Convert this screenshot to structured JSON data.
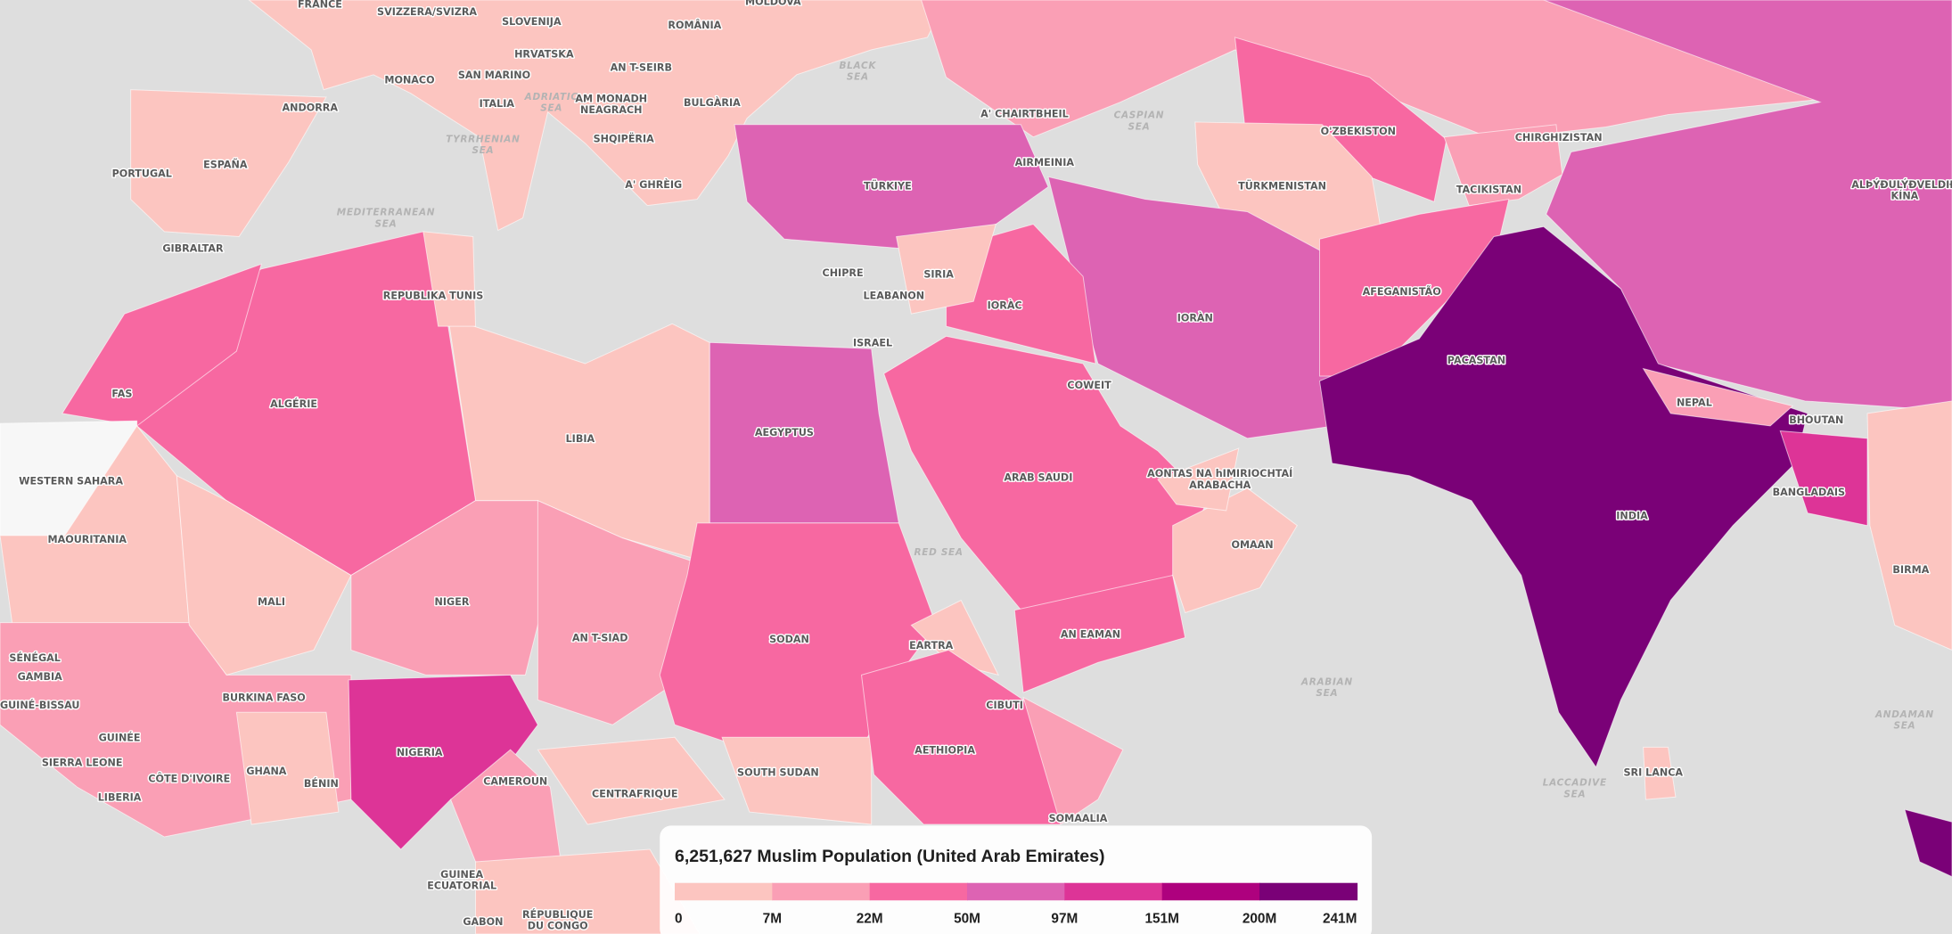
{
  "map": {
    "country_labels": [
      [
        "FRANCE"
      ],
      [
        "SVIZZERA/SVIZRA"
      ],
      [
        "SLOVENIJA"
      ],
      [
        "ROMÂNIA"
      ],
      [
        "MOLDOVA"
      ],
      [
        "HRVATSKA"
      ],
      [
        "AN T-SEIRB"
      ],
      [
        "MONACO"
      ],
      [
        "SAN MARINO"
      ],
      [
        "ANDORRA"
      ],
      [
        "ITALIA"
      ],
      [
        "AM MONADH",
        "NEAGRACH"
      ],
      [
        "BULGÀRIA"
      ],
      [
        "SHQIPËRIA"
      ],
      [
        "PORTUGAL"
      ],
      [
        "ESPAÑA"
      ],
      [
        "A' CHAIRTBHEIL"
      ],
      [
        "O'ZBEKISTON"
      ],
      [
        "CHIRGHIZISTAN"
      ],
      [
        "A' GHRÈIG"
      ],
      [
        "TÜRKIYE"
      ],
      [
        "AIRMEINIA"
      ],
      [
        "TÜRKMENISTAN"
      ],
      [
        "TACIKISTAN"
      ],
      [
        "ALÞÝÐULÝÐVELDIÐ",
        "KÍNA"
      ],
      [
        "GIBRALTAR"
      ],
      [
        "CHIPRE"
      ],
      [
        "SIRIA"
      ],
      [
        "REPUBLIKA TUNIS"
      ],
      [
        "LEABANON"
      ],
      [
        "AFEGANISTÃO"
      ],
      [
        "IORÀC"
      ],
      [
        "IORÀN"
      ],
      [
        "ISRAEL"
      ],
      [
        "PACASTAN"
      ],
      [
        "FAS"
      ],
      [
        "ALGÉRIE"
      ],
      [
        "LIBIA"
      ],
      [
        "AEGYPTUS"
      ],
      [
        "COWEIT"
      ],
      [
        "NEPAL"
      ],
      [
        "BHOUTAN"
      ],
      [
        "WESTERN SAHARA"
      ],
      [
        "ARAB SAUDI"
      ],
      [
        "AONTAS NA hIMIRIOCHTAÍ",
        "ARABACHA"
      ],
      [
        "BANGLADAIS"
      ],
      [
        "INDIA"
      ],
      [
        "MAOURITANIA"
      ],
      [
        "OMAAN"
      ],
      [
        "MALI"
      ],
      [
        "NIGER"
      ],
      [
        "BIRMA"
      ],
      [
        "AN T-SIAD"
      ],
      [
        "SODAN"
      ],
      [
        "AN EAMAN"
      ],
      [
        "EARTRA"
      ],
      [
        "SÉNÉGAL"
      ],
      [
        "GAMBIA"
      ],
      [
        "BURKINA FASO"
      ],
      [
        "CIBUTI"
      ],
      [
        "GUINÉ-BISSAU"
      ],
      [
        "GUINÉE"
      ],
      [
        "NIGERIA"
      ],
      [
        "AETHIOPIA"
      ],
      [
        "SIERRA LEONE"
      ],
      [
        "GHANA"
      ],
      [
        "BÉNIN"
      ],
      [
        "SOUTH SUDAN"
      ],
      [
        "SRI LANCA"
      ],
      [
        "CÔTE D'IVOIRE"
      ],
      [
        "CAMEROUN"
      ],
      [
        "LIBERIA"
      ],
      [
        "CENTRAFRIQUE"
      ],
      [
        "SOMAALIA"
      ],
      [
        "GUINEA",
        "ECUATORIAL"
      ],
      [
        "GABON"
      ],
      [
        "RÉPUBLIQUE",
        "DU CONGO"
      ]
    ],
    "sea_labels": [
      [
        "ADRIATIC",
        "SEA"
      ],
      [
        "BLACK",
        "SEA"
      ],
      [
        "CASPIAN",
        "SEA"
      ],
      [
        "TYRRHENIAN",
        "SEA"
      ],
      [
        "MEDITERRANEAN",
        "SEA"
      ],
      [
        "RED SEA"
      ],
      [
        "ARABIAN",
        "SEA"
      ],
      [
        "ANDAMAN",
        "SEA"
      ],
      [
        "LACCADIVE",
        "SEA"
      ]
    ]
  },
  "legend": {
    "title": "6,251,627 Muslim Population (United Arab Emirates)",
    "colors": [
      "#fcc5c0",
      "#fa9fb5",
      "#f768a1",
      "#dd63b3",
      "#dd3497",
      "#ae017e",
      "#7a0177"
    ],
    "ticks": [
      "0",
      "7M",
      "22M",
      "50M",
      "97M",
      "151M",
      "200M",
      "241M"
    ]
  }
}
